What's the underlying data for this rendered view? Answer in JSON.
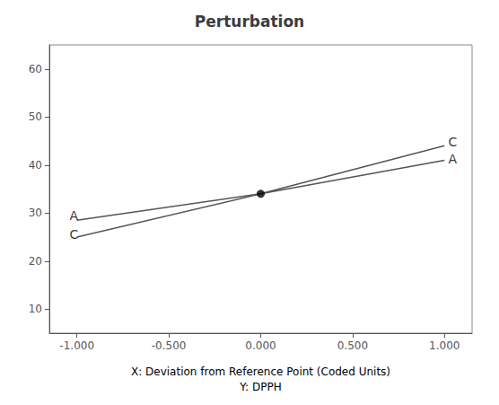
{
  "chart_data": {
    "type": "line",
    "title": "Perturbation",
    "xlabel": "X: Deviation from Reference Point (Coded Units)\nY: DPPH",
    "xlim": [
      -1.15,
      1.15
    ],
    "ylim": [
      5,
      65
    ],
    "xticks": [
      {
        "value": -1.0,
        "label": "-1.000"
      },
      {
        "value": -0.5,
        "label": "-0.500"
      },
      {
        "value": 0.0,
        "label": "0.000"
      },
      {
        "value": 0.5,
        "label": "0.500"
      },
      {
        "value": 1.0,
        "label": "1.000"
      }
    ],
    "yticks": [
      10,
      20,
      30,
      40,
      50,
      60
    ],
    "grid": false,
    "series": [
      {
        "name": "A",
        "type": "line",
        "color": "#555555",
        "x": [
          -1.0,
          0.0,
          1.0
        ],
        "values": [
          28.5,
          34.0,
          41.0
        ]
      },
      {
        "name": "C",
        "type": "line",
        "color": "#555555",
        "x": [
          -1.0,
          0.0,
          1.0
        ],
        "values": [
          25.0,
          34.0,
          44.0
        ]
      },
      {
        "type": "scatter",
        "color": "#000000",
        "x": [
          0.0
        ],
        "values": [
          34.0
        ]
      }
    ],
    "annotations": [
      {
        "text": "A",
        "x": -1.04,
        "y": 29.5
      },
      {
        "text": "A",
        "x": 1.02,
        "y": 41.3
      },
      {
        "text": "C",
        "x": -1.04,
        "y": 25.5
      },
      {
        "text": "C",
        "x": 1.02,
        "y": 44.8
      }
    ]
  }
}
